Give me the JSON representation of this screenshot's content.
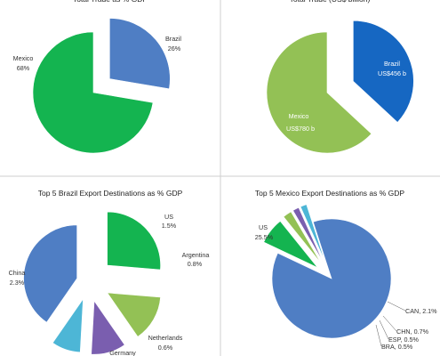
{
  "chart_data": [
    {
      "type": "pie",
      "title": "Total Trade as % GDP",
      "slices": [
        {
          "label": "Brazil",
          "value": "26%",
          "share": 26,
          "color": "#4f7ec4",
          "exploded": true
        },
        {
          "label": "Mexico",
          "value": "68%",
          "share": 68,
          "color": "#14b450",
          "exploded": false
        }
      ]
    },
    {
      "type": "pie",
      "title": "Total Trade (US$ billion)",
      "slices": [
        {
          "label": "Brazil",
          "value": "US$456 b",
          "share": 456,
          "color": "#1667c2",
          "exploded": true
        },
        {
          "label": "Mexico",
          "value": "US$780 b",
          "share": 780,
          "color": "#93c155",
          "exploded": false
        }
      ]
    },
    {
      "type": "pie",
      "title": "Top 5 Brazil Export Destinations as % GDP",
      "slices": [
        {
          "label": "US",
          "value": "1.5%",
          "share": 1.5,
          "color": "#14b450"
        },
        {
          "label": "Argentina",
          "value": "0.8%",
          "share": 0.8,
          "color": "#93c155"
        },
        {
          "label": "Netherlands",
          "value": "0.6%",
          "share": 0.6,
          "color": "#7a5eaf"
        },
        {
          "label": "Germany",
          "value": "",
          "share": 0.5,
          "color": "#4db6d6"
        },
        {
          "label": "China",
          "value": "2.3%",
          "share": 2.3,
          "color": "#4f7ec4"
        }
      ]
    },
    {
      "type": "pie",
      "title": "Top 5 Mexico Export Destinations as % GDP",
      "slices": [
        {
          "label": "US",
          "value": "25.5%",
          "share": 25.5,
          "color": "#4f7ec4"
        },
        {
          "label": "CAN",
          "value": "2.1%",
          "share": 2.1,
          "color": "#14b450"
        },
        {
          "label": "CHN",
          "value": "0.7%",
          "share": 0.7,
          "color": "#93c155"
        },
        {
          "label": "ESP",
          "value": "0.5%",
          "share": 0.5,
          "color": "#7a5eaf"
        },
        {
          "label": "BRA",
          "value": "0.5%",
          "share": 0.5,
          "color": "#4db6d6"
        }
      ]
    }
  ]
}
